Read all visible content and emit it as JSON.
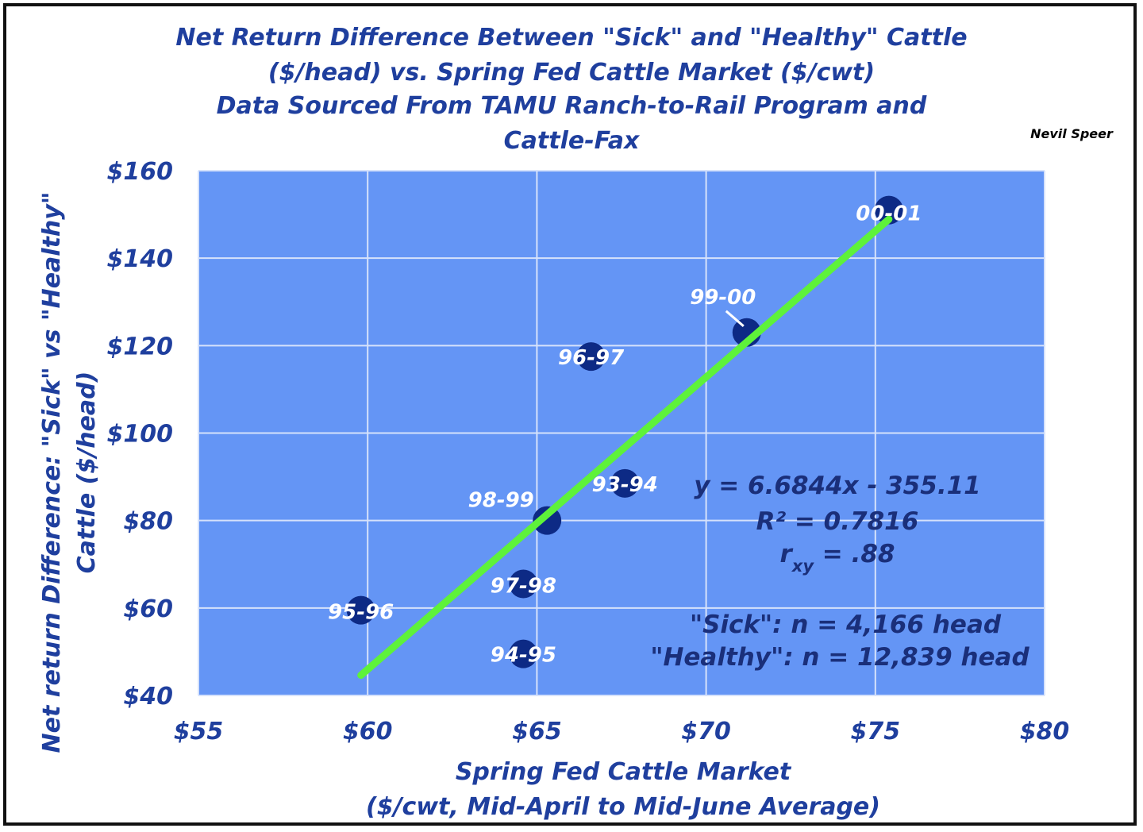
{
  "chart_data": {
    "type": "scatter",
    "title_lines": [
      "Net Return Difference Between \"Sick\" and \"Healthy\" Cattle",
      "($/head) vs. Spring Fed Cattle Market ($/cwt)",
      "Data Sourced From TAMU Ranch-to-Rail Program and",
      "Cattle-Fax"
    ],
    "author": "Nevil Speer",
    "xlabel_lines": [
      "Spring Fed Cattle Market",
      "($/cwt, Mid-April to Mid-June Average)"
    ],
    "ylabel_lines": [
      "Net return Difference: \"Sick\" vs \"Healthy\"",
      "Cattle ($/head)"
    ],
    "xlim": [
      55,
      80
    ],
    "ylim": [
      40,
      160
    ],
    "x_ticks": [
      55,
      60,
      65,
      70,
      75,
      80
    ],
    "x_tick_labels": [
      "$55",
      "$60",
      "$65",
      "$70",
      "$75",
      "$80"
    ],
    "y_ticks": [
      40,
      60,
      80,
      100,
      120,
      140,
      160
    ],
    "y_tick_labels": [
      "$40",
      "$60",
      "$80",
      "$100",
      "$120",
      "$140",
      "$160"
    ],
    "grid": true,
    "colors": {
      "plot_background": "#6495f5",
      "grid": "#d6e2fb",
      "point": "#0d2a85",
      "trendline": "#5ef23a",
      "text": "#1f3f9e"
    },
    "points": [
      {
        "label": "93-94",
        "x": 67.6,
        "y": 88.5
      },
      {
        "label": "94-95",
        "x": 64.6,
        "y": 49.5
      },
      {
        "label": "95-96",
        "x": 59.8,
        "y": 59.5
      },
      {
        "label": "96-97",
        "x": 66.6,
        "y": 117.5
      },
      {
        "label": "97-98",
        "x": 64.6,
        "y": 65.5
      },
      {
        "label": "98-99",
        "x": 65.3,
        "y": 80
      },
      {
        "label": "99-00",
        "x": 71.2,
        "y": 123
      },
      {
        "label": "00-01",
        "x": 75.4,
        "y": 151
      }
    ],
    "trendline": {
      "x_start": 59.8,
      "x_end": 75.4,
      "slope": 6.6844,
      "intercept": -355.11
    },
    "annotations": {
      "equation": "y = 6.6844x - 355.11",
      "r_squared": "R² = 0.7816",
      "rxy_prefix": "r",
      "rxy_sub": "xy",
      "rxy_value": " = .88",
      "sick": "\"Sick\": n = 4,166 head",
      "healthy": "\"Healthy\": n = 12,839 head"
    }
  }
}
